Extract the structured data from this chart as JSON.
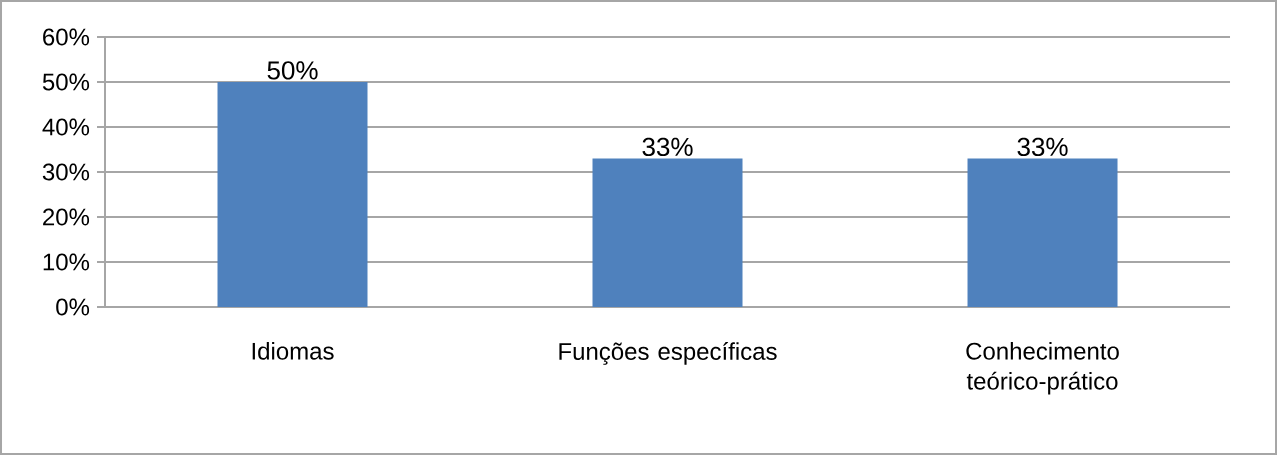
{
  "chart_data": {
    "type": "bar",
    "categories": [
      "Idiomas",
      "Funções específicas",
      "Conhecimento teórico-prático"
    ],
    "values": [
      50,
      33,
      33
    ],
    "value_labels": [
      "50%",
      "33%",
      "33%"
    ],
    "color": "#4f81bd",
    "ylim": [
      0,
      60
    ],
    "yticks": [
      {
        "value": 0,
        "label": "0%"
      },
      {
        "value": 10,
        "label": "10%"
      },
      {
        "value": 20,
        "label": "20%"
      },
      {
        "value": 30,
        "label": "30%"
      },
      {
        "value": 40,
        "label": "40%"
      },
      {
        "value": 50,
        "label": "50%"
      },
      {
        "value": 60,
        "label": "60%"
      }
    ],
    "grid": "y"
  }
}
